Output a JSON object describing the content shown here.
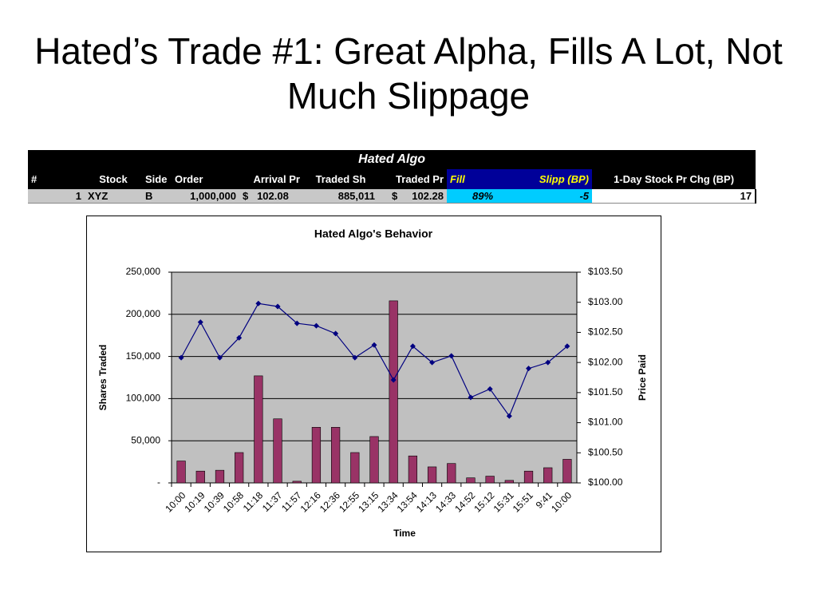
{
  "title": "Hated’s Trade #1: Great Alpha, Fills A Lot, Not Much Slippage",
  "table": {
    "title": "Hated Algo",
    "columns": [
      "#",
      "Stock",
      "Side",
      "Order",
      "Arrival Pr",
      "Traded Sh",
      "Traded Pr",
      "Fill",
      "Slipp (BP)",
      "1-Day Stock Pr Chg (BP)"
    ],
    "rows": [
      [
        "1",
        "XYZ",
        "B",
        "1,000,000",
        "$   102.08",
        "885,011",
        "$     102.28",
        "89%",
        "-5",
        "17"
      ]
    ]
  },
  "chart_data": {
    "type": "bar_line",
    "title": "Hated Algo's Behavior",
    "x_label": "Time",
    "y_label": "Shares Traded",
    "y2_label": "Price Paid",
    "categories": [
      "10:00",
      "10:19",
      "10:39",
      "10:58",
      "11:18",
      "11:37",
      "11:57",
      "12:16",
      "12:36",
      "12:55",
      "13:15",
      "13:34",
      "13:54",
      "14:13",
      "14:33",
      "14:52",
      "15:12",
      "15:31",
      "15:51",
      "9:41",
      "10:00"
    ],
    "series": [
      {
        "name": "Shares Traded",
        "type": "bar",
        "color": "#993366",
        "values": [
          26000,
          14000,
          15000,
          36000,
          127000,
          76000,
          2000,
          66000,
          66000,
          36000,
          55000,
          216000,
          32000,
          19000,
          23000,
          6000,
          8000,
          3000,
          14000,
          18000,
          28000
        ]
      },
      {
        "name": "Price Paid",
        "type": "line",
        "axis": "y2",
        "color": "#000080",
        "values": [
          102.08,
          102.67,
          102.08,
          102.41,
          102.98,
          102.93,
          102.65,
          102.61,
          102.48,
          102.08,
          102.29,
          101.71,
          102.27,
          102.0,
          102.11,
          101.42,
          101.56,
          101.11,
          101.9,
          102.0,
          102.27
        ]
      }
    ],
    "ylim": [
      0,
      250000
    ],
    "yticks": [
      {
        "value": 0,
        "label": "-"
      },
      {
        "value": 50000,
        "label": "50,000"
      },
      {
        "value": 100000,
        "label": "100,000"
      },
      {
        "value": 150000,
        "label": "150,000"
      },
      {
        "value": 200000,
        "label": "200,000"
      },
      {
        "value": 250000,
        "label": "250,000"
      }
    ],
    "y2lim": [
      100,
      103.5
    ],
    "y2ticks": [
      {
        "value": 100,
        "label": "$100.00"
      },
      {
        "value": 100.5,
        "label": "$100.50"
      },
      {
        "value": 101,
        "label": "$101.00"
      },
      {
        "value": 101.5,
        "label": "$101.50"
      },
      {
        "value": 102,
        "label": "$102.00"
      },
      {
        "value": 102.5,
        "label": "$102.50"
      },
      {
        "value": 103,
        "label": "$103.00"
      },
      {
        "value": 103.5,
        "label": "$103.50"
      }
    ],
    "grid": true,
    "plot_background": "#c0c0c0"
  }
}
